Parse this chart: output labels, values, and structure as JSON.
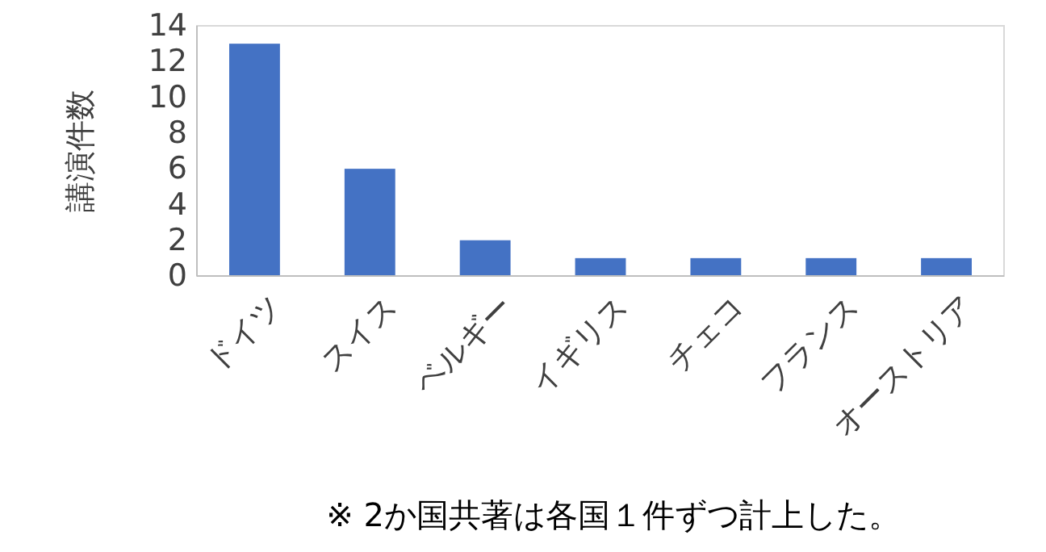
{
  "chart_data": {
    "type": "bar",
    "ylabel": "講演件数",
    "categories": [
      "ドイツ",
      "スイス",
      "ベルギー",
      "イギリス",
      "チェコ",
      "フランス",
      "オーストリア"
    ],
    "values": [
      13,
      6,
      2,
      1,
      1,
      1,
      1
    ],
    "color": "#4472c4",
    "ylim": [
      0,
      14
    ],
    "yticks": [
      0,
      2,
      4,
      6,
      8,
      10,
      12,
      14
    ],
    "grid": false,
    "annotations": [
      "※ 2か国共著は各国１件ずつ計上した。"
    ]
  }
}
